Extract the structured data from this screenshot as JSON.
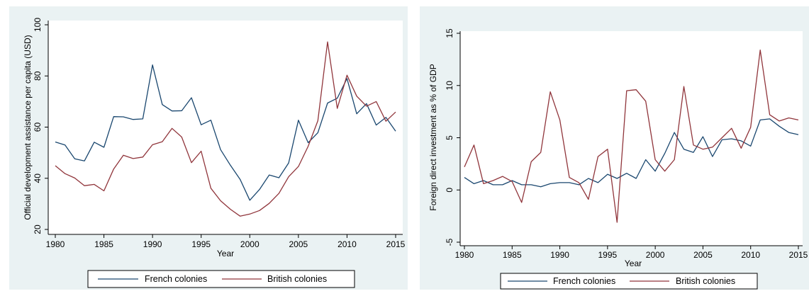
{
  "colors": {
    "french": "#1a476f",
    "british": "#90353b",
    "panel_bg": "#eaf2f3",
    "plot_bg": "#ffffff"
  },
  "legend": {
    "french_label": "French colonies",
    "british_label": "British colonies"
  },
  "chart_data": [
    {
      "type": "line",
      "title": "",
      "xlabel": "Year",
      "ylabel": "Official development assistance per capita (USD)",
      "xlim": [
        1980,
        2015
      ],
      "ylim": [
        20,
        100
      ],
      "xticks": [
        "1980",
        "1985",
        "1990",
        "1995",
        "2000",
        "2005",
        "2010",
        "2015"
      ],
      "yticks": [
        "20",
        "40",
        "60",
        "80",
        "100"
      ],
      "grid": false,
      "legend_position": "bottom",
      "x": [
        1980,
        1981,
        1982,
        1983,
        1984,
        1985,
        1986,
        1987,
        1988,
        1989,
        1990,
        1991,
        1992,
        1993,
        1994,
        1995,
        1996,
        1997,
        1998,
        1999,
        2000,
        2001,
        2002,
        2003,
        2004,
        2005,
        2006,
        2007,
        2008,
        2009,
        2010,
        2011,
        2012,
        2013,
        2014,
        2015
      ],
      "series": [
        {
          "name": "French colonies",
          "values": [
            54.2,
            53.0,
            47.6,
            46.8,
            54.1,
            52.1,
            64.1,
            64.0,
            63.0,
            63.2,
            84.3,
            68.8,
            66.3,
            66.4,
            71.5,
            60.9,
            62.7,
            51.2,
            45.1,
            39.6,
            31.4,
            35.6,
            41.3,
            40.2,
            46.0,
            62.7,
            53.9,
            57.8,
            69.4,
            71.3,
            79.0,
            65.2,
            69.2,
            60.8,
            63.8,
            58.4
          ]
        },
        {
          "name": "British colonies",
          "values": [
            44.9,
            41.8,
            40.1,
            37.1,
            37.6,
            35.1,
            43.6,
            49.0,
            47.7,
            48.3,
            53.1,
            54.3,
            59.5,
            56.1,
            46.1,
            50.6,
            36.1,
            31.2,
            27.9,
            25.2,
            26.0,
            27.4,
            30.2,
            34.1,
            40.6,
            44.6,
            52.5,
            62.5,
            93.3,
            67.3,
            80.3,
            72.1,
            68.2,
            70.0,
            62.3,
            65.9
          ]
        }
      ]
    },
    {
      "type": "line",
      "title": "",
      "xlabel": "Year",
      "ylabel": "Foreign direct investment as % of GDP",
      "xlim": [
        1980,
        2015
      ],
      "ylim": [
        -5,
        15
      ],
      "xticks": [
        "1980",
        "1985",
        "1990",
        "1995",
        "2000",
        "2005",
        "2010",
        "2015"
      ],
      "yticks": [
        "-5",
        "0",
        "5",
        "10",
        "15"
      ],
      "grid": false,
      "legend_position": "bottom",
      "x": [
        1980,
        1981,
        1982,
        1983,
        1984,
        1985,
        1986,
        1987,
        1988,
        1989,
        1990,
        1991,
        1992,
        1993,
        1994,
        1995,
        1996,
        1997,
        1998,
        1999,
        2000,
        2001,
        2002,
        2003,
        2004,
        2005,
        2006,
        2007,
        2008,
        2009,
        2010,
        2011,
        2012,
        2013,
        2014,
        2015
      ],
      "series": [
        {
          "name": "French colonies",
          "values": [
            1.2,
            0.6,
            0.9,
            0.5,
            0.5,
            0.9,
            0.5,
            0.5,
            0.3,
            0.6,
            0.7,
            0.7,
            0.5,
            1.1,
            0.7,
            1.5,
            1.1,
            1.6,
            1.1,
            2.9,
            1.8,
            3.5,
            5.5,
            3.9,
            3.6,
            5.1,
            3.2,
            4.8,
            4.9,
            4.7,
            4.2,
            6.7,
            6.8,
            6.1,
            5.5,
            5.3
          ]
        },
        {
          "name": "British colonies",
          "values": [
            2.2,
            4.3,
            0.6,
            0.9,
            1.3,
            0.8,
            -1.2,
            2.7,
            3.6,
            9.4,
            6.7,
            1.2,
            0.7,
            -0.9,
            3.2,
            3.9,
            -3.1,
            9.5,
            9.6,
            8.5,
            2.9,
            1.8,
            2.9,
            9.9,
            4.3,
            3.9,
            4.1,
            5.0,
            5.9,
            4.0,
            6.0,
            13.4,
            7.2,
            6.6,
            6.9,
            6.7
          ]
        }
      ]
    }
  ]
}
